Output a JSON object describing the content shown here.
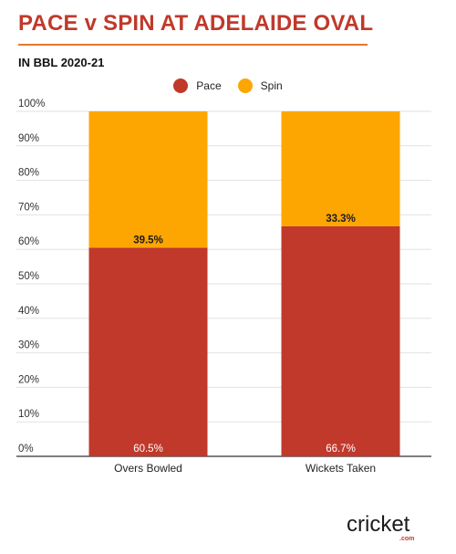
{
  "title": "PACE v SPIN AT ADELAIDE OVAL",
  "subtitle": "IN BBL 2020-21",
  "brand": {
    "name": "cricket",
    "suffix": ".com"
  },
  "colors": {
    "title": "#c0392b",
    "rule": "#e8762d",
    "pace": "#c0392b",
    "spin": "#fda602"
  },
  "chart_data": {
    "type": "bar",
    "stacked": true,
    "categories": [
      "Overs Bowled",
      "Wickets Taken"
    ],
    "series": [
      {
        "name": "Pace",
        "values": [
          60.5,
          66.7
        ],
        "labels": [
          "60.5%",
          "66.7%"
        ]
      },
      {
        "name": "Spin",
        "values": [
          39.5,
          33.3
        ],
        "labels": [
          "39.5%",
          "33.3%"
        ]
      }
    ],
    "ylim": [
      0,
      100
    ],
    "yticks": [
      "0%",
      "10%",
      "20%",
      "30%",
      "40%",
      "50%",
      "60%",
      "70%",
      "80%",
      "90%",
      "100%"
    ],
    "grid": true,
    "legend": "top"
  }
}
